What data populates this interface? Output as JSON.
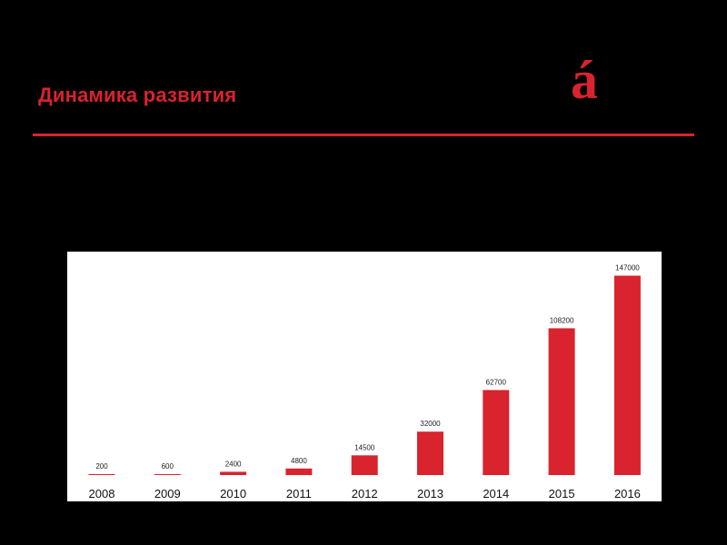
{
  "slide": {
    "title": "Динамика развития",
    "logo_mark": "á"
  },
  "colors": {
    "accent": "#d9232e",
    "background": "#000000",
    "panel": "#ffffff"
  },
  "chart_data": {
    "type": "bar",
    "categories": [
      "2008",
      "2009",
      "2010",
      "2011",
      "2012",
      "2013",
      "2014",
      "2015",
      "2016"
    ],
    "values": [
      200,
      600,
      2400,
      4800,
      14500,
      32000,
      62700,
      108200,
      147000
    ],
    "data_labels": [
      "200",
      "600",
      "2400",
      "4800",
      "14500",
      "32000",
      "62700",
      "108200",
      "147000"
    ],
    "title": "",
    "xlabel": "",
    "ylabel": "",
    "ylim": [
      0,
      150000
    ],
    "grid": false,
    "legend": "none",
    "bar_color": "#d9232e"
  }
}
